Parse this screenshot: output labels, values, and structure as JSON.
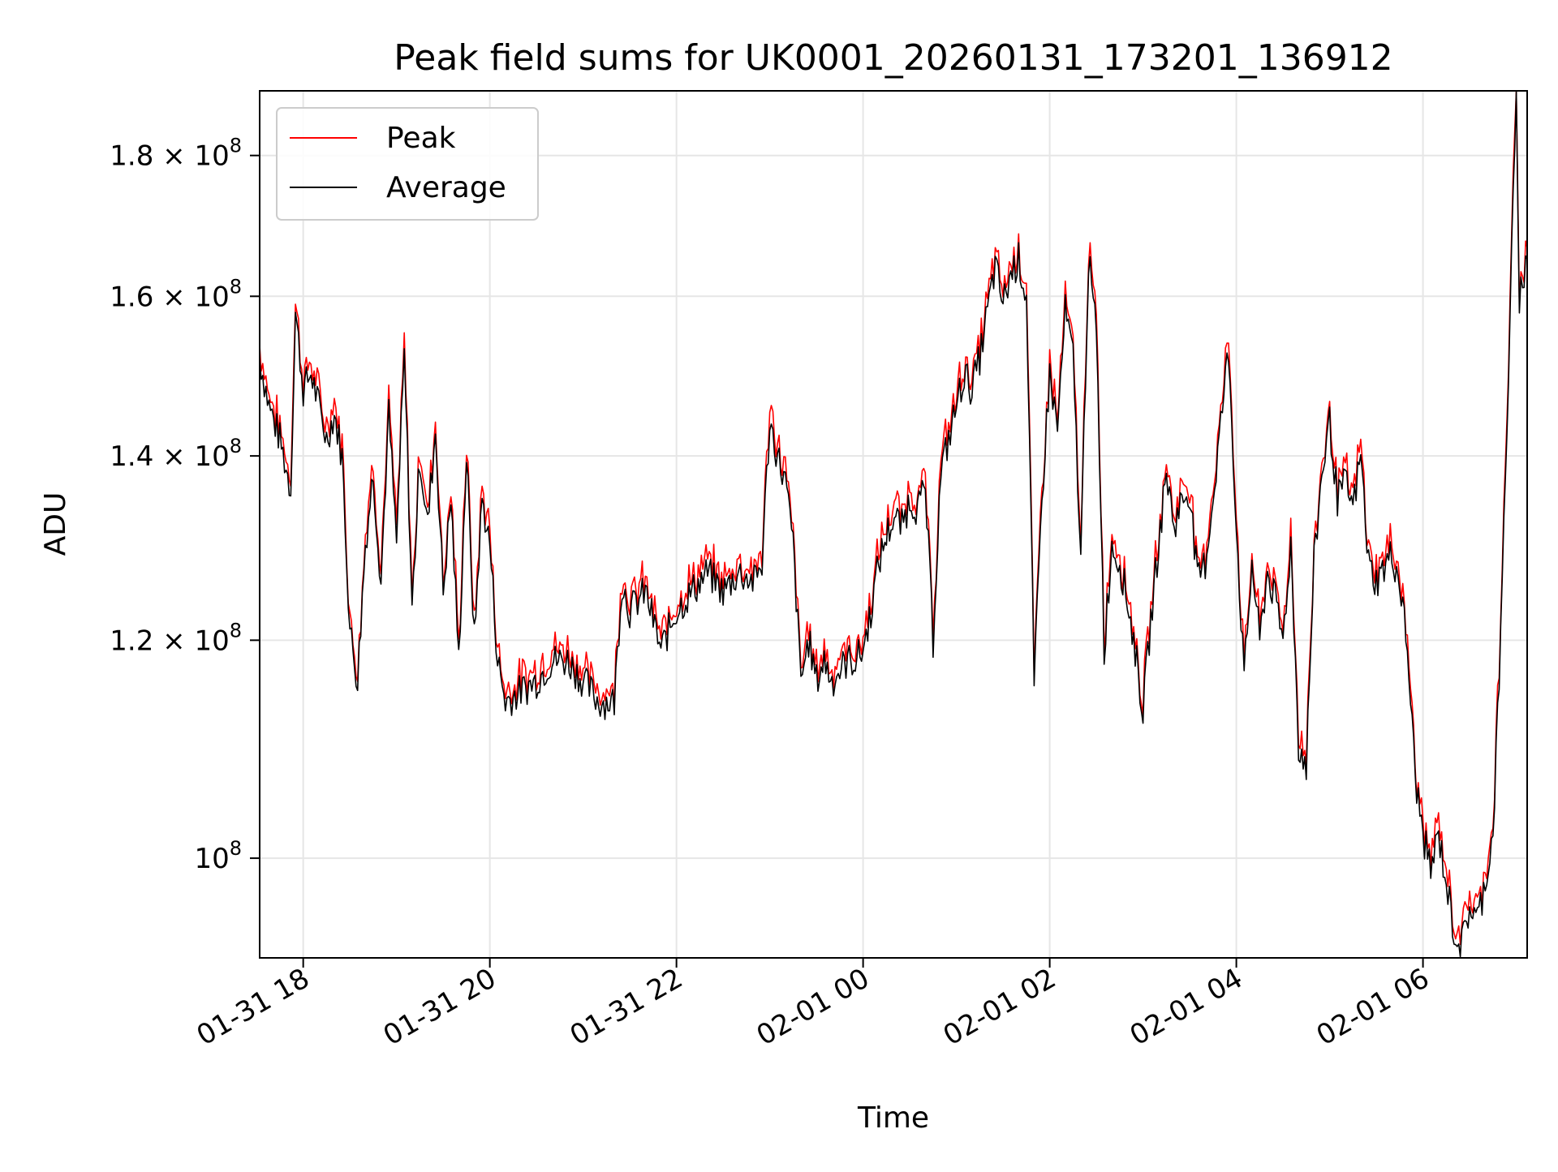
{
  "chart_data": {
    "type": "line",
    "title": "Peak field sums for UK0001_20260131_173201_136912",
    "xlabel": "Time",
    "ylabel": "ADU",
    "x_axis": {
      "type": "datetime",
      "range": [
        "2026-01-31 17:32",
        "2026-02-01 07:07"
      ],
      "ticks": [
        {
          "value": "2026-01-31 18:00",
          "label": "01-31 18"
        },
        {
          "value": "2026-01-31 20:00",
          "label": "01-31 20"
        },
        {
          "value": "2026-01-31 22:00",
          "label": "01-31 22"
        },
        {
          "value": "2026-02-01 00:00",
          "label": "02-01 00"
        },
        {
          "value": "2026-02-01 02:00",
          "label": "02-01 02"
        },
        {
          "value": "2026-02-01 04:00",
          "label": "02-01 04"
        },
        {
          "value": "2026-02-01 06:00",
          "label": "02-01 06"
        }
      ]
    },
    "y_axis": {
      "scale": "log",
      "range": [
        92000000,
        190000000
      ],
      "ticks": [
        {
          "value": 100000000,
          "mant": "",
          "exp": "8"
        },
        {
          "value": 120000000,
          "mant": "1.2",
          "exp": "8"
        },
        {
          "value": 140000000,
          "mant": "1.4",
          "exp": "8"
        },
        {
          "value": 160000000,
          "mant": "1.6",
          "exp": "8"
        },
        {
          "value": 180000000,
          "mant": "1.8",
          "exp": "8"
        }
      ]
    },
    "grid": true,
    "legend": {
      "position": "top-left"
    },
    "series": [
      {
        "name": "Peak",
        "color": "#ff0000"
      },
      {
        "name": "Average",
        "color": "#000000",
        "points": [
          [
            "2026-01-31 17:32",
            152
          ],
          [
            "2026-01-31 17:38",
            146
          ],
          [
            "2026-01-31 17:45",
            142
          ],
          [
            "2026-01-31 17:52",
            136
          ],
          [
            "2026-01-31 17:55",
            158
          ],
          [
            "2026-01-31 18:00",
            148
          ],
          [
            "2026-01-31 18:05",
            150
          ],
          [
            "2026-01-31 18:10",
            146
          ],
          [
            "2026-01-31 18:15",
            142
          ],
          [
            "2026-01-31 18:20",
            145
          ],
          [
            "2026-01-31 18:25",
            140
          ],
          [
            "2026-01-31 18:30",
            121
          ],
          [
            "2026-01-31 18:35",
            116
          ],
          [
            "2026-01-31 18:40",
            130
          ],
          [
            "2026-01-31 18:45",
            138
          ],
          [
            "2026-01-31 18:50",
            126
          ],
          [
            "2026-01-31 18:55",
            145
          ],
          [
            "2026-01-31 19:00",
            130
          ],
          [
            "2026-01-31 19:05",
            152
          ],
          [
            "2026-01-31 19:10",
            123
          ],
          [
            "2026-01-31 19:15",
            140
          ],
          [
            "2026-01-31 19:20",
            132
          ],
          [
            "2026-01-31 19:25",
            143
          ],
          [
            "2026-01-31 19:30",
            125
          ],
          [
            "2026-01-31 19:35",
            135
          ],
          [
            "2026-01-31 19:40",
            118
          ],
          [
            "2026-01-31 19:45",
            140
          ],
          [
            "2026-01-31 19:50",
            120
          ],
          [
            "2026-01-31 19:55",
            135
          ],
          [
            "2026-01-31 20:00",
            130
          ],
          [
            "2026-01-31 20:05",
            118
          ],
          [
            "2026-01-31 20:10",
            114
          ],
          [
            "2026-01-31 20:20",
            115
          ],
          [
            "2026-01-31 20:30",
            116
          ],
          [
            "2026-01-31 20:40",
            118
          ],
          [
            "2026-01-31 20:50",
            118
          ],
          [
            "2026-01-31 21:00",
            116
          ],
          [
            "2026-01-31 21:10",
            114
          ],
          [
            "2026-01-31 21:20",
            114
          ],
          [
            "2026-01-31 21:25",
            126
          ],
          [
            "2026-01-31 21:30",
            123
          ],
          [
            "2026-01-31 21:40",
            125
          ],
          [
            "2026-01-31 21:50",
            119
          ],
          [
            "2026-01-31 22:00",
            123
          ],
          [
            "2026-01-31 22:10",
            125
          ],
          [
            "2026-01-31 22:20",
            127
          ],
          [
            "2026-01-31 22:30",
            125
          ],
          [
            "2026-01-31 22:40",
            127
          ],
          [
            "2026-01-31 22:50",
            126
          ],
          [
            "2026-01-31 22:55",
            128
          ],
          [
            "2026-01-31 23:00",
            144
          ],
          [
            "2026-01-31 23:05",
            140
          ],
          [
            "2026-01-31 23:10",
            137
          ],
          [
            "2026-01-31 23:15",
            130
          ],
          [
            "2026-01-31 23:20",
            116
          ],
          [
            "2026-01-31 23:25",
            120
          ],
          [
            "2026-01-31 23:30",
            116
          ],
          [
            "2026-01-31 23:35",
            118
          ],
          [
            "2026-01-31 23:40",
            116
          ],
          [
            "2026-01-31 23:45",
            117
          ],
          [
            "2026-01-31 23:50",
            118
          ],
          [
            "2026-01-31 23:55",
            118
          ],
          [
            "2026-02-01 00:00",
            119
          ],
          [
            "2026-02-01 00:05",
            123
          ],
          [
            "2026-02-01 00:10",
            128
          ],
          [
            "2026-02-01 00:15",
            131
          ],
          [
            "2026-02-01 00:20",
            133
          ],
          [
            "2026-02-01 00:25",
            132
          ],
          [
            "2026-02-01 00:30",
            135
          ],
          [
            "2026-02-01 00:35",
            134
          ],
          [
            "2026-02-01 00:40",
            136
          ],
          [
            "2026-02-01 00:45",
            120
          ],
          [
            "2026-02-01 00:50",
            138
          ],
          [
            "2026-02-01 00:55",
            142
          ],
          [
            "2026-02-01 01:00",
            146
          ],
          [
            "2026-02-01 01:05",
            150
          ],
          [
            "2026-02-01 01:10",
            148
          ],
          [
            "2026-02-01 01:15",
            152
          ],
          [
            "2026-02-01 01:20",
            158
          ],
          [
            "2026-02-01 01:25",
            164
          ],
          [
            "2026-02-01 01:30",
            159
          ],
          [
            "2026-02-01 01:35",
            163
          ],
          [
            "2026-02-01 01:40",
            165
          ],
          [
            "2026-02-01 01:45",
            160
          ],
          [
            "2026-02-01 01:50",
            115
          ],
          [
            "2026-02-01 01:55",
            135
          ],
          [
            "2026-02-01 02:00",
            150
          ],
          [
            "2026-02-01 02:05",
            143
          ],
          [
            "2026-02-01 02:10",
            158
          ],
          [
            "2026-02-01 02:15",
            152
          ],
          [
            "2026-02-01 02:20",
            128
          ],
          [
            "2026-02-01 02:25",
            165
          ],
          [
            "2026-02-01 02:30",
            155
          ],
          [
            "2026-02-01 02:35",
            119
          ],
          [
            "2026-02-01 02:40",
            130
          ],
          [
            "2026-02-01 02:45",
            128
          ],
          [
            "2026-02-01 02:50",
            124
          ],
          [
            "2026-02-01 02:55",
            119
          ],
          [
            "2026-02-01 03:00",
            113
          ],
          [
            "2026-02-01 03:05",
            122
          ],
          [
            "2026-02-01 03:10",
            130
          ],
          [
            "2026-02-01 03:15",
            138
          ],
          [
            "2026-02-01 03:20",
            132
          ],
          [
            "2026-02-01 03:25",
            135
          ],
          [
            "2026-02-01 03:30",
            136
          ],
          [
            "2026-02-01 03:35",
            126
          ],
          [
            "2026-02-01 03:40",
            128
          ],
          [
            "2026-02-01 03:45",
            135
          ],
          [
            "2026-02-01 03:50",
            144
          ],
          [
            "2026-02-01 03:55",
            153
          ],
          [
            "2026-02-01 04:00",
            132
          ],
          [
            "2026-02-01 04:05",
            116
          ],
          [
            "2026-02-01 04:10",
            128
          ],
          [
            "2026-02-01 04:15",
            120
          ],
          [
            "2026-02-01 04:20",
            127
          ],
          [
            "2026-02-01 04:25",
            124
          ],
          [
            "2026-02-01 04:30",
            120
          ],
          [
            "2026-02-01 04:35",
            130
          ],
          [
            "2026-02-01 04:40",
            110
          ],
          [
            "2026-02-01 04:45",
            108
          ],
          [
            "2026-02-01 04:50",
            128
          ],
          [
            "2026-02-01 04:55",
            138
          ],
          [
            "2026-02-01 05:00",
            144
          ],
          [
            "2026-02-01 05:05",
            135
          ],
          [
            "2026-02-01 05:10",
            137
          ],
          [
            "2026-02-01 05:15",
            134
          ],
          [
            "2026-02-01 05:20",
            140
          ],
          [
            "2026-02-01 05:25",
            128
          ],
          [
            "2026-02-01 05:30",
            126
          ],
          [
            "2026-02-01 05:40",
            129
          ],
          [
            "2026-02-01 05:45",
            126
          ],
          [
            "2026-02-01 05:50",
            119
          ],
          [
            "2026-02-01 05:55",
            107
          ],
          [
            "2026-02-01 06:00",
            102
          ],
          [
            "2026-02-01 06:05",
            99
          ],
          [
            "2026-02-01 06:10",
            102
          ],
          [
            "2026-02-01 06:15",
            98
          ],
          [
            "2026-02-01 06:20",
            94
          ],
          [
            "2026-02-01 06:25",
            93
          ],
          [
            "2026-02-01 06:30",
            96
          ],
          [
            "2026-02-01 06:35",
            95
          ],
          [
            "2026-02-01 06:40",
            98
          ],
          [
            "2026-02-01 06:45",
            102
          ],
          [
            "2026-02-01 06:50",
            120
          ],
          [
            "2026-02-01 06:55",
            150
          ],
          [
            "2026-02-01 07:00",
            188
          ],
          [
            "2026-02-01 07:02",
            160
          ],
          [
            "2026-02-01 07:07",
            165
          ]
        ]
      }
    ]
  }
}
